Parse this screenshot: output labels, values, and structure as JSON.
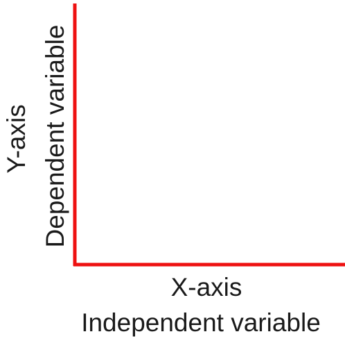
{
  "y_axis": {
    "title": "Y-axis",
    "subtitle": "Dependent variable"
  },
  "x_axis": {
    "title": "X-axis",
    "subtitle": "Independent variable"
  }
}
